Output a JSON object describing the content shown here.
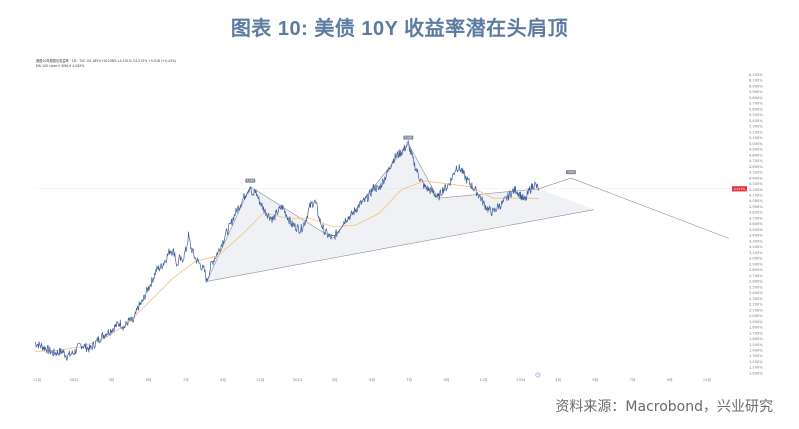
{
  "title": "图表 10: 美债 10Y 收益率潜在头肩顶",
  "source": "资料来源：Macrobond，兴业研究",
  "colors": {
    "title": "#5d7aa0",
    "price_line": "#3d5c9c",
    "ma_line": "#f5c07a",
    "pattern_line": "#8a8f98",
    "pattern_fill": "#eceef2",
    "last_price_bg": "#e8343f",
    "marker": "#a04ad0"
  },
  "legend": {
    "line1": "美国10年期国债收益率 · 1D · TVC  O4.185% H4.238% L4.151% C4.213% +0.018 (+0.43%)",
    "line2": "MA 100 close 0 SMA 9  4.045%"
  },
  "last_price_label": "4.213%",
  "chart_data": {
    "type": "line",
    "title": "",
    "xlabel": "",
    "ylabel": "",
    "ylim": [
      0.9,
      6.3
    ],
    "yticks": [
      "1.000%",
      "1.100%",
      "1.200%",
      "1.300%",
      "1.400%",
      "1.500%",
      "1.600%",
      "1.700%",
      "1.800%",
      "1.900%",
      "2.000%",
      "2.100%",
      "2.200%",
      "2.300%",
      "2.400%",
      "2.500%",
      "2.600%",
      "2.700%",
      "2.800%",
      "2.900%",
      "3.000%",
      "3.100%",
      "3.200%",
      "3.300%",
      "3.400%",
      "3.500%",
      "3.600%",
      "3.700%",
      "3.800%",
      "3.900%",
      "4.000%",
      "4.100%",
      "4.200%",
      "4.300%",
      "4.400%",
      "4.500%",
      "4.600%",
      "4.700%",
      "4.800%",
      "4.900%",
      "5.000%",
      "5.100%",
      "5.200%",
      "5.300%",
      "5.400%",
      "5.500%",
      "5.600%",
      "5.700%",
      "5.800%",
      "5.900%",
      "6.000%",
      "6.100%",
      "6.200%"
    ],
    "xticks": [
      "11月",
      "2022",
      "3月",
      "5月",
      "7月",
      "9月",
      "11月",
      "2023",
      "3月",
      "5月",
      "7月",
      "9月",
      "11月",
      "2024",
      "3月",
      "5月",
      "7月",
      "9月",
      "11月"
    ],
    "series": [
      {
        "type": "line",
        "points": [
          [
            0,
            1.53
          ],
          [
            4,
            1.45
          ],
          [
            8,
            1.35
          ],
          [
            12,
            1.38
          ],
          [
            14,
            1.3
          ],
          [
            17,
            1.36
          ],
          [
            20,
            1.5
          ],
          [
            24,
            1.42
          ],
          [
            28,
            1.6
          ],
          [
            31,
            1.7
          ],
          [
            34,
            1.78
          ],
          [
            37,
            1.88
          ],
          [
            39,
            1.8
          ],
          [
            41,
            1.92
          ],
          [
            43,
            1.9
          ],
          [
            45,
            2.15
          ],
          [
            47,
            2.25
          ],
          [
            49,
            2.45
          ],
          [
            51,
            2.6
          ],
          [
            53,
            2.8
          ],
          [
            55,
            2.85
          ],
          [
            57,
            2.98
          ],
          [
            59,
            3.15
          ],
          [
            61,
            3.1
          ],
          [
            62,
            2.85
          ],
          [
            63,
            3.0
          ],
          [
            64,
            2.95
          ],
          [
            66,
            3.15
          ],
          [
            67,
            3.4
          ],
          [
            68,
            3.2
          ],
          [
            70,
            3.0
          ],
          [
            72,
            2.9
          ],
          [
            74,
            2.78
          ],
          [
            75,
            2.6
          ],
          [
            77,
            2.9
          ],
          [
            79,
            3.05
          ],
          [
            81,
            3.2
          ],
          [
            83,
            3.4
          ],
          [
            85,
            3.55
          ],
          [
            87,
            3.75
          ],
          [
            89,
            3.9
          ],
          [
            91,
            4.05
          ],
          [
            93,
            4.2
          ],
          [
            94,
            4.25
          ],
          [
            95,
            4.05
          ],
          [
            96,
            4.2
          ],
          [
            98,
            4.0
          ],
          [
            100,
            3.85
          ],
          [
            102,
            3.75
          ],
          [
            104,
            3.68
          ],
          [
            106,
            3.82
          ],
          [
            108,
            3.9
          ],
          [
            110,
            3.75
          ],
          [
            112,
            3.6
          ],
          [
            114,
            3.55
          ],
          [
            116,
            3.5
          ],
          [
            118,
            3.65
          ],
          [
            120,
            3.9
          ],
          [
            122,
            4.0
          ],
          [
            123,
            3.9
          ],
          [
            124,
            3.7
          ],
          [
            126,
            3.5
          ],
          [
            128,
            3.4
          ],
          [
            130,
            3.35
          ],
          [
            132,
            3.45
          ],
          [
            134,
            3.6
          ],
          [
            136,
            3.7
          ],
          [
            138,
            3.75
          ],
          [
            140,
            3.85
          ],
          [
            142,
            3.95
          ],
          [
            144,
            4.0
          ],
          [
            146,
            4.1
          ],
          [
            148,
            4.25
          ],
          [
            150,
            4.2
          ],
          [
            152,
            4.35
          ],
          [
            154,
            4.5
          ],
          [
            156,
            4.7
          ],
          [
            158,
            4.8
          ],
          [
            160,
            4.85
          ],
          [
            162,
            4.95
          ],
          [
            163,
            5.0
          ],
          [
            164,
            4.85
          ],
          [
            166,
            4.6
          ],
          [
            168,
            4.4
          ],
          [
            170,
            4.25
          ],
          [
            172,
            4.2
          ],
          [
            174,
            4.15
          ],
          [
            176,
            4.05
          ],
          [
            178,
            4.2
          ],
          [
            180,
            4.25
          ],
          [
            182,
            4.4
          ],
          [
            184,
            4.6
          ],
          [
            186,
            4.55
          ],
          [
            188,
            4.4
          ],
          [
            190,
            4.3
          ],
          [
            192,
            4.2
          ],
          [
            194,
            4.1
          ],
          [
            196,
            3.95
          ],
          [
            198,
            3.85
          ],
          [
            200,
            3.8
          ],
          [
            202,
            3.9
          ],
          [
            204,
            3.95
          ],
          [
            206,
            4.05
          ],
          [
            207,
            4.1
          ],
          [
            208,
            4.15
          ],
          [
            210,
            4.2
          ],
          [
            212,
            4.1
          ],
          [
            214,
            4.0
          ],
          [
            216,
            4.2
          ],
          [
            218,
            4.3
          ],
          [
            219,
            4.25
          ],
          [
            220,
            4.213
          ]
        ]
      },
      {
        "type": "ma",
        "points": [
          [
            0,
            1.38
          ],
          [
            10,
            1.4
          ],
          [
            20,
            1.46
          ],
          [
            30,
            1.6
          ],
          [
            40,
            1.85
          ],
          [
            50,
            2.25
          ],
          [
            60,
            2.65
          ],
          [
            70,
            2.95
          ],
          [
            80,
            3.05
          ],
          [
            90,
            3.4
          ],
          [
            100,
            3.8
          ],
          [
            110,
            3.7
          ],
          [
            120,
            3.7
          ],
          [
            130,
            3.55
          ],
          [
            140,
            3.58
          ],
          [
            150,
            3.78
          ],
          [
            160,
            4.2
          ],
          [
            170,
            4.35
          ],
          [
            180,
            4.3
          ],
          [
            190,
            4.25
          ],
          [
            200,
            4.05
          ],
          [
            210,
            4.05
          ],
          [
            220,
            4.045
          ]
        ]
      }
    ],
    "annotations": {
      "neckline": [
        [
          75,
          2.6
        ],
        [
          244,
          3.85
        ]
      ],
      "shoulders_path": [
        [
          75,
          2.6
        ],
        [
          94,
          4.25
        ],
        [
          130,
          3.35
        ],
        [
          163,
          5.0
        ],
        [
          176,
          4.05
        ],
        [
          220,
          4.213
        ],
        [
          234,
          4.4
        ],
        [
          303,
          3.35
        ]
      ],
      "peak_labels": [
        "4.248",
        "5.000",
        "4.400"
      ]
    },
    "x_range": [
      0,
      310
    ]
  }
}
